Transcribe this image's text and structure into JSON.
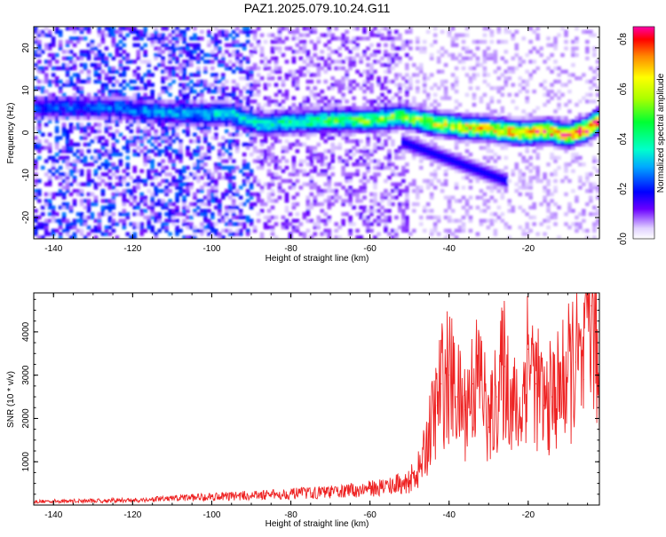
{
  "title": "PAZ1.2025.079.10.24.G11",
  "chart_data": [
    {
      "type": "heatmap",
      "xlabel": "Height of straight line (km)",
      "ylabel": "Frequency (Hz)",
      "xlim": [
        -145,
        -2
      ],
      "ylim": [
        -25,
        25
      ],
      "xticks": [
        -140,
        -120,
        -100,
        -80,
        -60,
        -40,
        -20
      ],
      "yticks": [
        -20,
        -10,
        0,
        10,
        20
      ],
      "colorbar": {
        "label": "Normalized spectral amplitude",
        "range": [
          0.0,
          0.85
        ],
        "ticks": [
          0.0,
          0.2,
          0.4,
          0.6,
          0.8
        ]
      },
      "ridge": [
        {
          "x": -125,
          "y": 6
        },
        {
          "x": -115,
          "y": 5
        },
        {
          "x": -105,
          "y": 4.5
        },
        {
          "x": -95,
          "y": 4.5
        },
        {
          "x": -88,
          "y": 2
        },
        {
          "x": -80,
          "y": 2.5
        },
        {
          "x": -70,
          "y": 3
        },
        {
          "x": -60,
          "y": 3
        },
        {
          "x": -52,
          "y": 4
        },
        {
          "x": -45,
          "y": 2.5
        },
        {
          "x": -38,
          "y": 1.5
        },
        {
          "x": -30,
          "y": 1
        },
        {
          "x": -22,
          "y": 0
        },
        {
          "x": -15,
          "y": 0.5
        },
        {
          "x": -10,
          "y": -0.5
        },
        {
          "x": -5,
          "y": 1
        },
        {
          "x": -2,
          "y": 3
        }
      ]
    },
    {
      "type": "line",
      "xlabel": "Height of straight line (km)",
      "ylabel": "SNR (10 * v/v)",
      "xlim": [
        -145,
        -2
      ],
      "ylim": [
        0,
        4900
      ],
      "xticks": [
        -140,
        -120,
        -100,
        -80,
        -60,
        -40,
        -20
      ],
      "yticks": [
        1000,
        2000,
        3000,
        4000
      ],
      "line_color": "#ee2222",
      "series": [
        {
          "x": [
            -145,
            -140,
            -130,
            -120,
            -110,
            -100,
            -90,
            -80,
            -75,
            -70,
            -65,
            -60,
            -55,
            -50,
            -47,
            -45,
            -43,
            -42,
            -40,
            -38,
            -36,
            -34,
            -32,
            -30,
            -28,
            -26,
            -24,
            -22,
            -20,
            -18,
            -16,
            -14,
            -12,
            -10,
            -8,
            -6,
            -5,
            -4,
            -3,
            -2
          ],
          "values": [
            80,
            90,
            100,
            110,
            150,
            200,
            220,
            260,
            280,
            300,
            330,
            380,
            450,
            550,
            900,
            1700,
            2300,
            2800,
            3000,
            2500,
            2200,
            2800,
            3000,
            1800,
            2500,
            3200,
            2400,
            2000,
            3600,
            2800,
            2300,
            2500,
            2700,
            3000,
            3300,
            2900,
            4800,
            4600,
            4200,
            2100
          ]
        }
      ]
    }
  ]
}
